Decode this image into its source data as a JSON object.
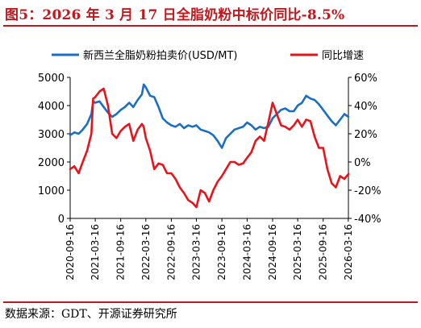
{
  "title": "图5：2026 年 3 月 17 日全脂奶粉中标价同比-8.5%",
  "source": "数据来源：GDT、开源证券研究所",
  "colors": {
    "price": "#1a6fc4",
    "yoy": "#e8141c",
    "accent": "#c0181d"
  },
  "chart_data": {
    "type": "line",
    "title": "",
    "legend_position": "top",
    "grid": false,
    "x_ticks": [
      "2020-09-16",
      "2021-03-16",
      "2021-09-16",
      "2022-03-16",
      "2022-09-16",
      "2023-03-16",
      "2023-09-16",
      "2024-03-16",
      "2024-09-16",
      "2025-03-16",
      "2025-09-16",
      "2026-03-16"
    ],
    "x_range": [
      "2020-09-16",
      "2026-03-17"
    ],
    "y_left": {
      "ticks": [
        "0",
        "1000",
        "2000",
        "3000",
        "4000",
        "5000"
      ],
      "min": 0,
      "max": 5000
    },
    "y_right": {
      "ticks": [
        "-40%",
        "-20%",
        "0%",
        "20%",
        "40%",
        "60%"
      ],
      "min": -40,
      "max": 60,
      "unit": "%"
    },
    "series": [
      {
        "name": "新西兰全脂奶粉拍卖价(USD/MT)",
        "axis": "left",
        "x": [
          "2020-09-16",
          "2020-10-16",
          "2020-11-16",
          "2020-12-16",
          "2021-01-16",
          "2021-02-16",
          "2021-03-01",
          "2021-03-16",
          "2021-04-16",
          "2021-05-16",
          "2021-06-16",
          "2021-07-16",
          "2021-08-16",
          "2021-09-16",
          "2021-10-16",
          "2021-11-16",
          "2021-12-16",
          "2022-01-16",
          "2022-02-16",
          "2022-03-01",
          "2022-03-16",
          "2022-04-16",
          "2022-05-16",
          "2022-06-16",
          "2022-07-16",
          "2022-08-16",
          "2022-09-16",
          "2022-10-16",
          "2022-11-16",
          "2022-12-16",
          "2023-01-16",
          "2023-02-16",
          "2023-03-16",
          "2023-04-16",
          "2023-05-16",
          "2023-06-16",
          "2023-07-16",
          "2023-08-16",
          "2023-09-16",
          "2023-10-16",
          "2023-11-16",
          "2023-12-16",
          "2024-01-16",
          "2024-02-16",
          "2024-03-16",
          "2024-04-16",
          "2024-05-16",
          "2024-06-16",
          "2024-07-16",
          "2024-08-16",
          "2024-09-16",
          "2024-10-16",
          "2024-11-16",
          "2024-12-16",
          "2025-01-16",
          "2025-02-16",
          "2025-03-16",
          "2025-04-16",
          "2025-05-16",
          "2025-06-16",
          "2025-07-16",
          "2025-08-16",
          "2025-09-16",
          "2025-10-16",
          "2025-11-16",
          "2025-12-16",
          "2026-01-16",
          "2026-02-16",
          "2026-03-17"
        ],
        "values": [
          2950,
          3050,
          3000,
          3150,
          3350,
          3700,
          4150,
          4100,
          4150,
          3950,
          3750,
          3600,
          3700,
          3850,
          3950,
          4100,
          3950,
          4200,
          4400,
          4750,
          4650,
          4350,
          4300,
          3950,
          3550,
          3400,
          3300,
          3250,
          3350,
          3200,
          3300,
          3250,
          3300,
          3150,
          3100,
          3050,
          2950,
          2750,
          2500,
          2850,
          3000,
          3150,
          3200,
          3250,
          3400,
          3300,
          3150,
          3250,
          3200,
          3250,
          3550,
          3700,
          3850,
          3900,
          3800,
          3800,
          4000,
          4100,
          4350,
          4250,
          4200,
          4050,
          3850,
          3650,
          3450,
          3300,
          3500,
          3700,
          3600
        ]
      },
      {
        "name": "同比增速",
        "axis": "right",
        "x": [
          "2020-09-16",
          "2020-10-16",
          "2020-11-16",
          "2020-12-16",
          "2021-01-16",
          "2021-02-16",
          "2021-03-01",
          "2021-03-16",
          "2021-04-16",
          "2021-05-16",
          "2021-06-16",
          "2021-07-16",
          "2021-08-16",
          "2021-09-16",
          "2021-10-16",
          "2021-11-16",
          "2021-12-16",
          "2022-01-16",
          "2022-02-16",
          "2022-03-01",
          "2022-03-16",
          "2022-04-16",
          "2022-05-16",
          "2022-06-16",
          "2022-07-16",
          "2022-08-16",
          "2022-09-16",
          "2022-10-16",
          "2022-11-16",
          "2022-12-16",
          "2023-01-16",
          "2023-02-16",
          "2023-03-16",
          "2023-04-16",
          "2023-05-16",
          "2023-06-16",
          "2023-07-16",
          "2023-08-16",
          "2023-09-16",
          "2023-10-16",
          "2023-11-16",
          "2023-12-16",
          "2024-01-16",
          "2024-02-16",
          "2024-03-16",
          "2024-04-16",
          "2024-05-16",
          "2024-06-16",
          "2024-07-16",
          "2024-08-16",
          "2024-09-16",
          "2024-10-16",
          "2024-11-16",
          "2024-12-16",
          "2025-01-16",
          "2025-02-16",
          "2025-03-16",
          "2025-04-16",
          "2025-05-16",
          "2025-06-16",
          "2025-07-16",
          "2025-08-16",
          "2025-09-16",
          "2025-10-16",
          "2025-11-16",
          "2025-12-16",
          "2026-01-16",
          "2026-02-16",
          "2026-03-17"
        ],
        "values": [
          -5,
          -3,
          -8,
          0,
          8,
          20,
          45,
          46,
          50,
          52,
          40,
          20,
          17,
          22,
          25,
          27,
          15,
          23,
          27,
          25,
          17,
          8,
          -5,
          -1,
          -2,
          -8,
          -8,
          -12,
          -18,
          -22,
          -27,
          -29,
          -32,
          -20,
          -22,
          -28,
          -20,
          -14,
          -10,
          -5,
          0,
          0,
          -2,
          -1,
          3,
          7,
          15,
          18,
          15,
          28,
          42,
          34,
          26,
          25,
          23,
          26,
          30,
          25,
          30,
          29,
          18,
          10,
          10,
          -5,
          -15,
          -18,
          -10,
          -12,
          -8.5
        ]
      }
    ]
  }
}
